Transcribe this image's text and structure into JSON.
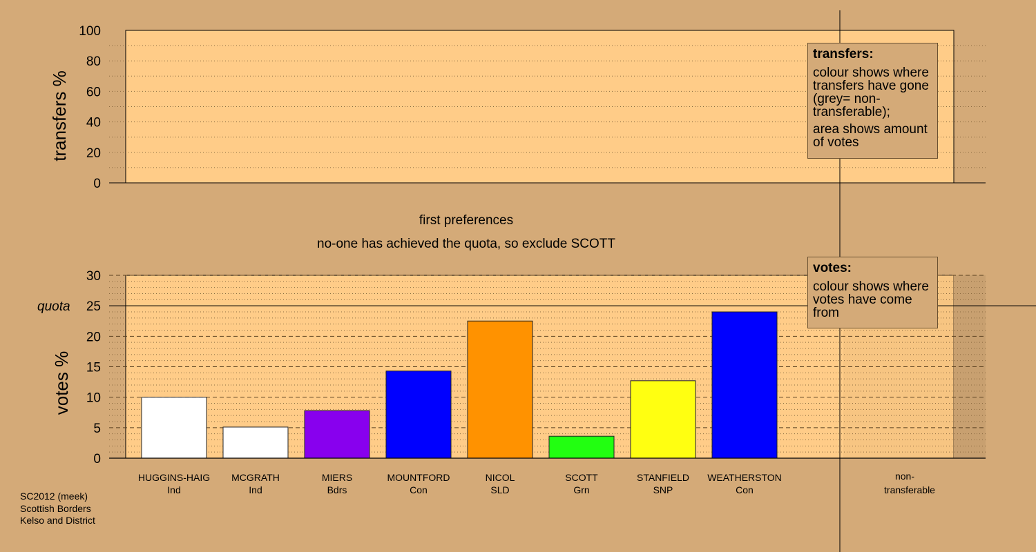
{
  "status": {
    "line1": "first preferences",
    "line2": "no-one has achieved the quota, so exclude SCOTT"
  },
  "footer": {
    "line1": "SC2012 (meek)",
    "line2": "Scottish Borders",
    "line3": "Kelso and District"
  },
  "legend_transfers": {
    "title": "transfers:",
    "p1": "colour shows where transfers have gone (grey= non-transferable);",
    "p2": "area shows amount of votes"
  },
  "legend_votes": {
    "title": "votes:",
    "p1": "colour shows where votes have come from"
  },
  "colors": {
    "background": "#d4aa78",
    "plot_bg": "#ffcc88"
  },
  "chart_data": [
    {
      "type": "bar",
      "ylabel": "transfers %",
      "ylim": [
        0,
        100
      ],
      "yticks": [
        0,
        20,
        40,
        60,
        80,
        100
      ],
      "categories": [],
      "values": []
    },
    {
      "type": "bar",
      "ylabel": "votes %",
      "ylim": [
        0,
        30
      ],
      "yticks": [
        0,
        5,
        10,
        15,
        20,
        25,
        30
      ],
      "quota": 25,
      "quota_label": "quota",
      "categories": [
        {
          "name": "HUGGINS-HAIG",
          "party": "Ind"
        },
        {
          "name": "MCGRATH",
          "party": "Ind"
        },
        {
          "name": "MIERS",
          "party": "Bdrs"
        },
        {
          "name": "MOUNTFORD",
          "party": "Con"
        },
        {
          "name": "NICOL",
          "party": "SLD"
        },
        {
          "name": "SCOTT",
          "party": "Grn"
        },
        {
          "name": "STANFIELD",
          "party": "SNP"
        },
        {
          "name": "WEATHERSTON",
          "party": "Con"
        }
      ],
      "values": [
        10.0,
        5.1,
        7.8,
        14.3,
        22.5,
        3.6,
        12.7,
        24.0
      ],
      "bar_colors": [
        "#ffffff",
        "#ffffff",
        "#8800ee",
        "#0000ff",
        "#ff9200",
        "#22ff11",
        "#ffff11",
        "#0000ff"
      ],
      "extra_category": "non-\ntransferable"
    }
  ]
}
